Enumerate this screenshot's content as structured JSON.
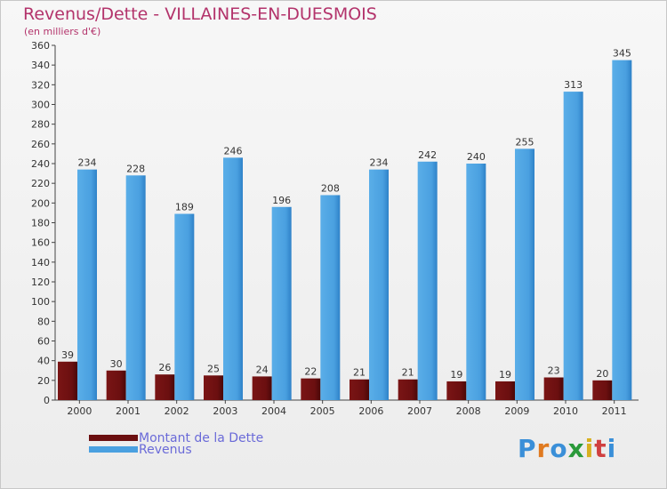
{
  "header": {
    "title": "Revenus/Dette - VILLAINES-EN-DUESMOIS",
    "subtitle": "(en milliers d'€)"
  },
  "logo": {
    "text": "Proxiti"
  },
  "colors": {
    "dette": "#6b0f10",
    "revenus": "#4aa0e0",
    "title": "#b3336b",
    "legend_text": "#6a6ad8"
  },
  "chart_data": {
    "type": "bar",
    "categories": [
      "2000",
      "2001",
      "2002",
      "2003",
      "2004",
      "2005",
      "2006",
      "2007",
      "2008",
      "2009",
      "2010",
      "2011"
    ],
    "series": [
      {
        "name": "Montant de la Dette",
        "values": [
          39,
          30,
          26,
          25,
          24,
          22,
          21,
          21,
          19,
          19,
          23,
          20
        ]
      },
      {
        "name": "Revenus",
        "values": [
          234,
          228,
          189,
          246,
          196,
          208,
          234,
          242,
          240,
          255,
          313,
          345
        ]
      }
    ],
    "ylim": [
      0,
      360
    ],
    "yticks": [
      0,
      20,
      40,
      60,
      80,
      100,
      120,
      140,
      160,
      180,
      200,
      220,
      240,
      260,
      280,
      300,
      320,
      340,
      360
    ],
    "grid": false,
    "legend": "bottom-left"
  }
}
